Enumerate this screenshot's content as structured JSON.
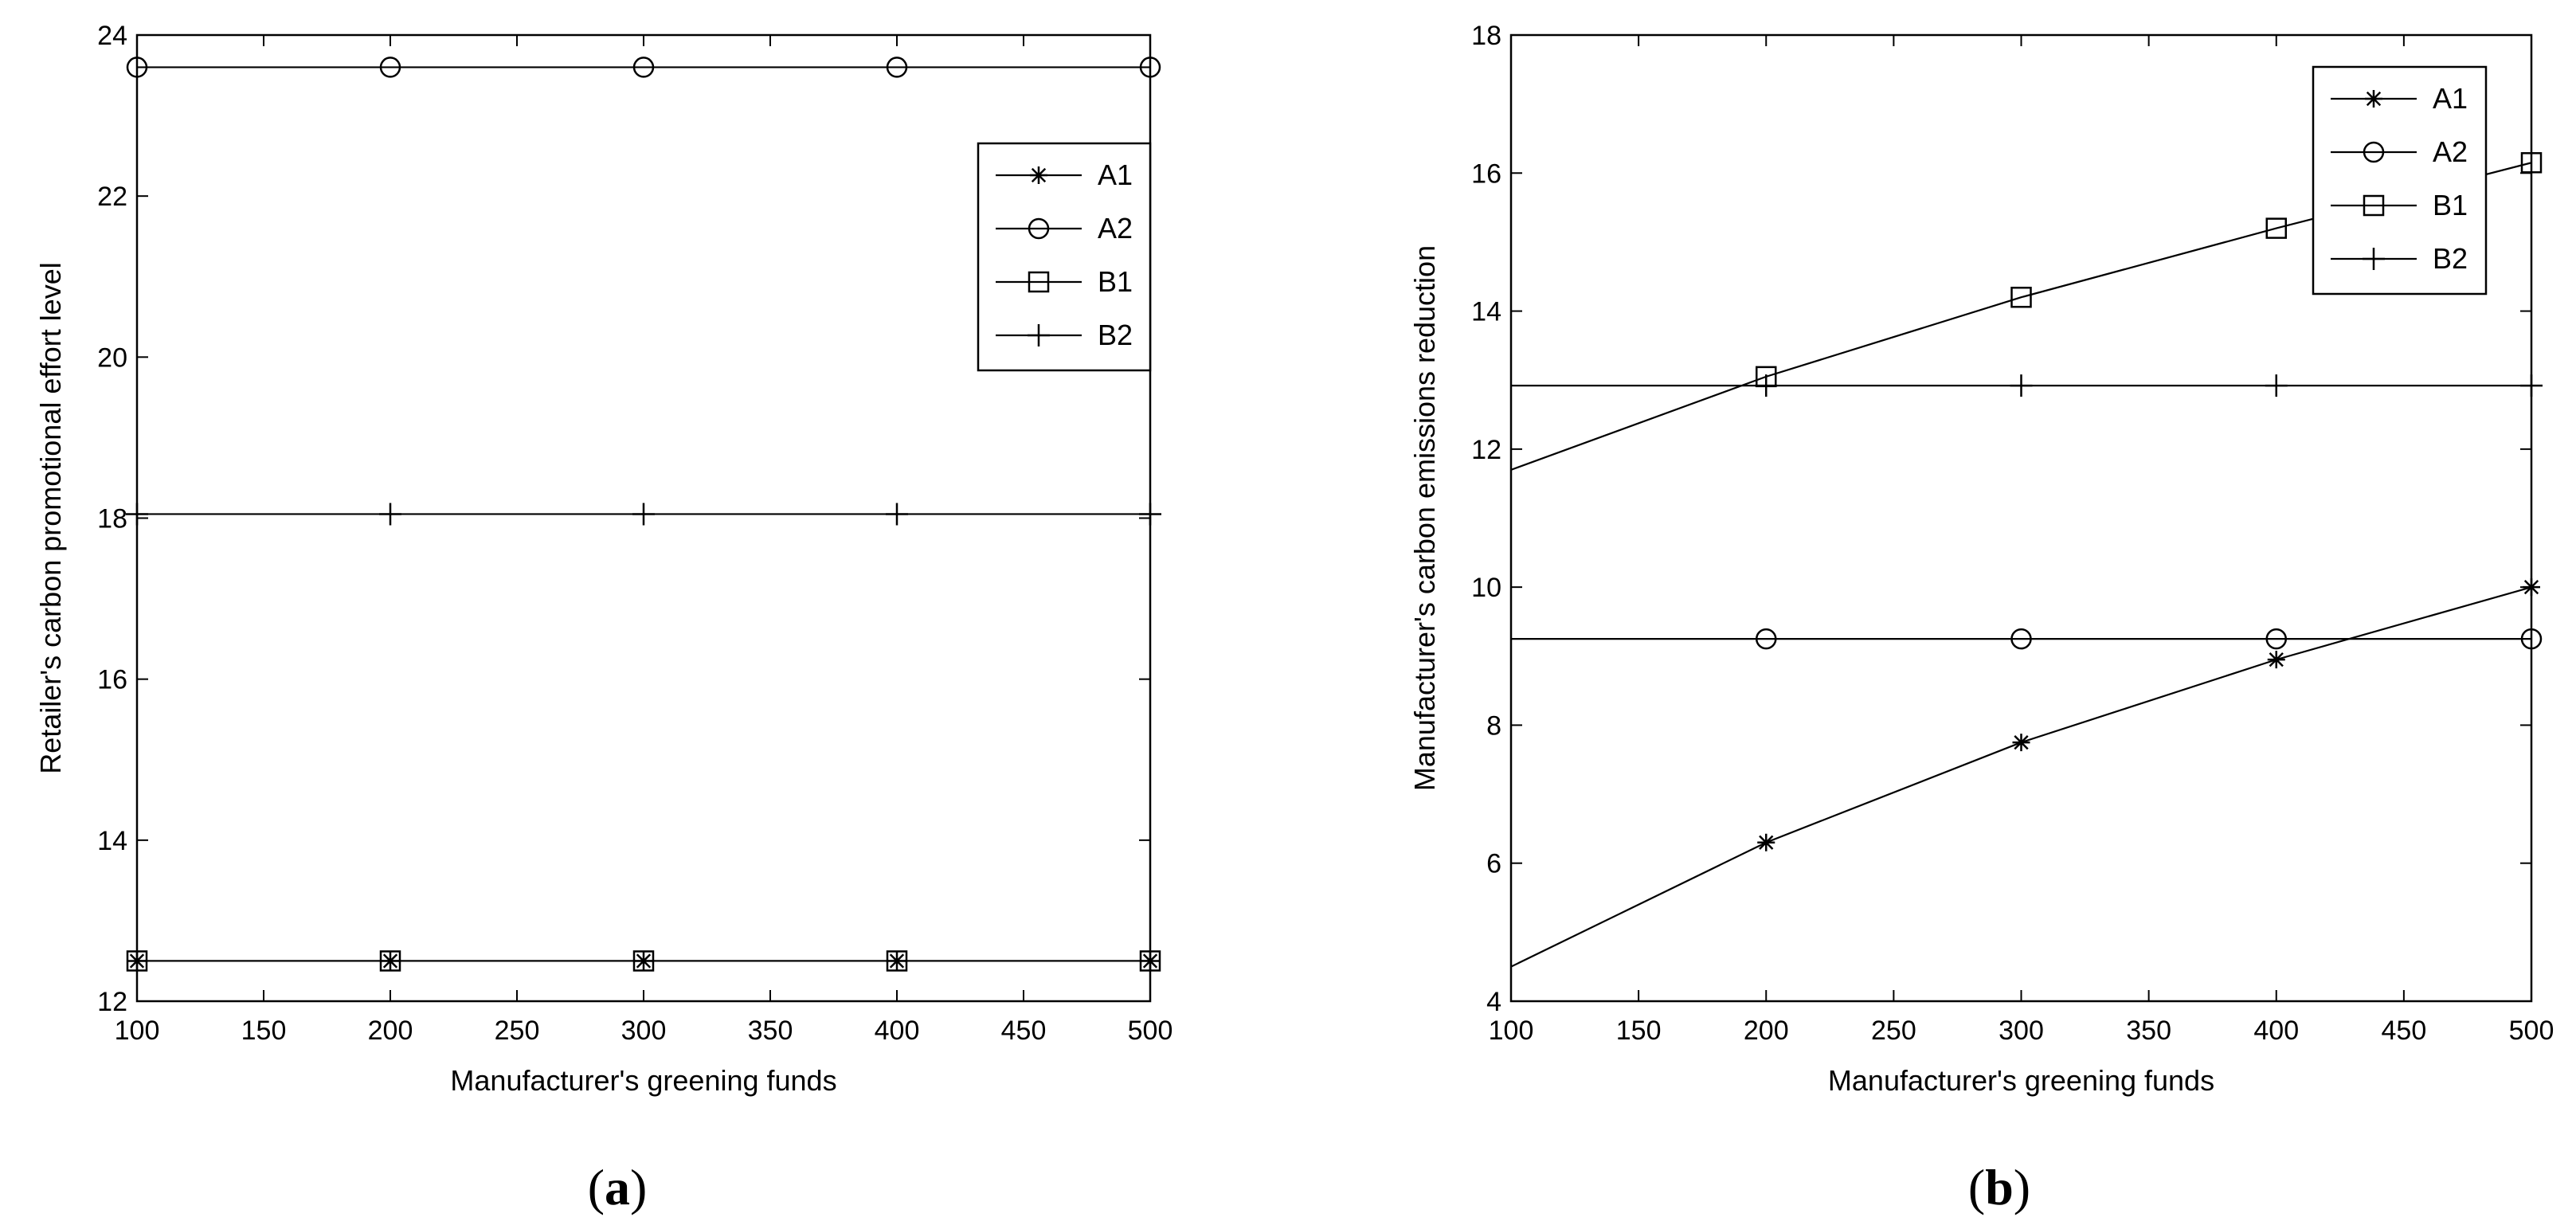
{
  "chart_data": [
    {
      "type": "line",
      "panel_label": "a",
      "xlabel": "Manufacturer's greening funds",
      "ylabel": "Retailer's carbon promotional effort level",
      "xlim": [
        100,
        500
      ],
      "ylim": [
        12,
        24
      ],
      "xticks": [
        100,
        150,
        200,
        250,
        300,
        350,
        400,
        450,
        500
      ],
      "yticks": [
        12,
        14,
        16,
        18,
        20,
        22,
        24
      ],
      "legend_position": "upper-right",
      "grid": false,
      "x": [
        100,
        200,
        300,
        400,
        500
      ],
      "series": [
        {
          "name": "A1",
          "marker": "asterisk",
          "values": [
            12.5,
            12.5,
            12.5,
            12.5,
            12.5
          ]
        },
        {
          "name": "A2",
          "marker": "circle",
          "values": [
            23.6,
            23.6,
            23.6,
            23.6,
            23.6
          ]
        },
        {
          "name": "B1",
          "marker": "square",
          "values": [
            12.5,
            12.5,
            12.5,
            12.5,
            12.5
          ]
        },
        {
          "name": "B2",
          "marker": "plus",
          "values": [
            18.05,
            18.05,
            18.05,
            18.05,
            18.05
          ]
        }
      ]
    },
    {
      "type": "line",
      "panel_label": "b",
      "xlabel": "Manufacturer's greening funds",
      "ylabel": "Manufacturer's carbon emissions reduction",
      "xlim": [
        100,
        500
      ],
      "ylim": [
        4,
        18
      ],
      "xticks": [
        100,
        150,
        200,
        250,
        300,
        350,
        400,
        450,
        500
      ],
      "yticks": [
        4,
        6,
        8,
        10,
        12,
        14,
        16,
        18
      ],
      "legend_position": "upper-right",
      "grid": false,
      "x": [
        100,
        200,
        300,
        400,
        500
      ],
      "series": [
        {
          "name": "A1",
          "marker": "asterisk",
          "values": [
            4.5,
            6.3,
            7.75,
            8.95,
            10.0
          ],
          "marker_x": [
            200,
            300,
            400,
            500
          ]
        },
        {
          "name": "A2",
          "marker": "circle",
          "values": [
            9.25,
            9.25,
            9.25,
            9.25,
            9.25
          ],
          "marker_x": [
            200,
            300,
            400,
            500
          ]
        },
        {
          "name": "B1",
          "marker": "square",
          "values": [
            11.7,
            13.05,
            14.2,
            15.2,
            16.15
          ],
          "marker_x": [
            200,
            300,
            400,
            500
          ]
        },
        {
          "name": "B2",
          "marker": "plus",
          "values": [
            12.92,
            12.92,
            12.92,
            12.92,
            12.92
          ],
          "marker_x": [
            200,
            300,
            400,
            500
          ]
        }
      ]
    }
  ]
}
